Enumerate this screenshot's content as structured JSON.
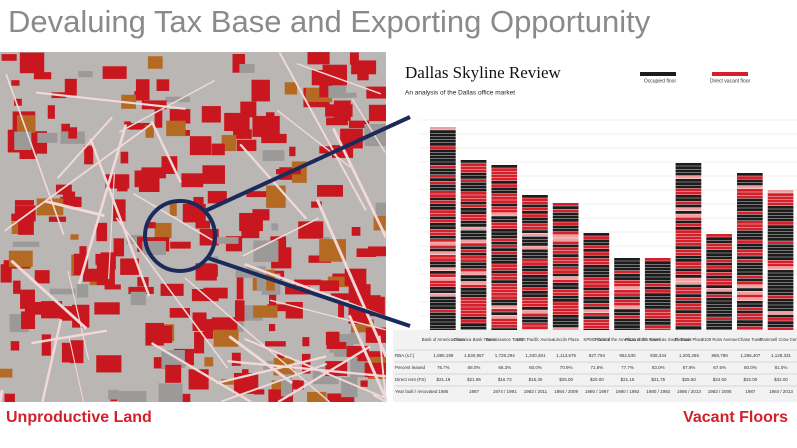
{
  "header": {
    "title": "Devaluing Tax Base and Exporting Opportunity"
  },
  "chart": {
    "title": "Dallas Skyline Review",
    "subtitle": "An analysis of the Dallas office market",
    "legend": [
      "Occupied floor",
      "Direct vacant floor"
    ]
  },
  "table": {
    "columns": [
      "Bank of America Plaza",
      "Comerica Bank Tower",
      "Renaissance Tower",
      "1700 Pacific Avenue",
      "Lincoln Plaza",
      "KPMG Centre",
      "Plaza of the Americas North Tower",
      "Plaza of the Americas South Tower",
      "Fountain Place",
      "2100 Ross Avenue",
      "Chase Tower",
      "Trammell Crow Center"
    ],
    "rows": [
      {
        "label": "RBA (s.f.)",
        "cells": [
          "1,885,198",
          "1,530,957",
          "1,728,294",
          "1,340,481",
          "1,113,675",
          "827,794",
          "952,530",
          "938,344",
          "1,200,266",
          "866,789",
          "1,296,407",
          "1,128,331"
        ]
      },
      {
        "label": "Percent leased",
        "cells": [
          "76.7%",
          "68.0%",
          "66.3%",
          "60.0%",
          "70.9%",
          "71.6%",
          "77.7%",
          "83.0%",
          "87.9%",
          "67.5%",
          "80.0%",
          "81.0%"
        ]
      },
      {
        "label": "Direct rent (FS)",
        "cells": [
          "$21.19",
          "$21.95",
          "$16.73",
          "$15.30",
          "$25.00",
          "$20.00",
          "$21.15",
          "$21.75",
          "$25.50",
          "$24.50",
          "$32.00",
          "$32.00"
        ]
      },
      {
        "label": "Year built / renovated",
        "cells": [
          "1985",
          "1987",
          "1974 / 1991",
          "1983 / 2011",
          "1984 / 2009",
          "1980 / 1997",
          "1980 / 1992",
          "1980 / 1992",
          "1986 / 2013",
          "1983 / 2006",
          "1987",
          "1984 / 2013"
        ]
      }
    ]
  },
  "captions": {
    "left": "Unproductive Land",
    "right": "Vacant Floors"
  }
}
